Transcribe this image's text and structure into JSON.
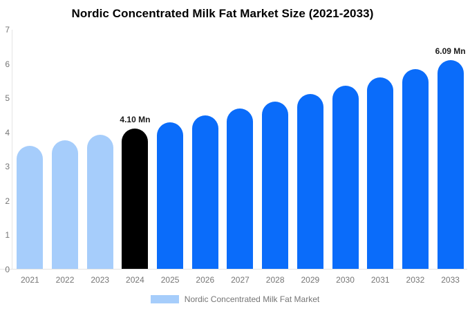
{
  "chart_data": {
    "type": "bar",
    "title": "Nordic Concentrated Milk Fat Market Size (2021-2033)",
    "xlabel": "",
    "ylabel": "",
    "unit": "Mn",
    "ylim": [
      0,
      7
    ],
    "yticks": [
      0,
      1,
      2,
      3,
      4,
      5,
      6,
      7
    ],
    "grid": "off",
    "legend_position": "bottom-center",
    "categories": [
      "2021",
      "2022",
      "2023",
      "2024",
      "2025",
      "2026",
      "2027",
      "2028",
      "2029",
      "2030",
      "2031",
      "2032",
      "2033"
    ],
    "values": [
      3.59,
      3.76,
      3.92,
      4.1,
      4.28,
      4.48,
      4.68,
      4.89,
      5.11,
      5.34,
      5.58,
      5.83,
      6.09
    ],
    "bar_colors": [
      "#a6cdfb",
      "#a6cdfb",
      "#a6cdfb",
      "#000000",
      "#0a6cfa",
      "#0a6cfa",
      "#0a6cfa",
      "#0a6cfa",
      "#0a6cfa",
      "#0a6cfa",
      "#0a6cfa",
      "#0a6cfa",
      "#0a6cfa"
    ],
    "annotations": [
      {
        "category": "2024",
        "text": "4.10 Mn"
      },
      {
        "category": "2033",
        "text": "6.09 Mn"
      }
    ],
    "legend": [
      {
        "label": "Nordic Concentrated Milk Fat Market",
        "color": "#a6cdfb"
      }
    ],
    "colors": {
      "historical_bar": "#a6cdfb",
      "base_year_bar": "#000000",
      "forecast_bar": "#0a6cfa",
      "axis_text": "#757575",
      "axis_line": "#e3e3e3",
      "title_text": "#000000"
    }
  }
}
